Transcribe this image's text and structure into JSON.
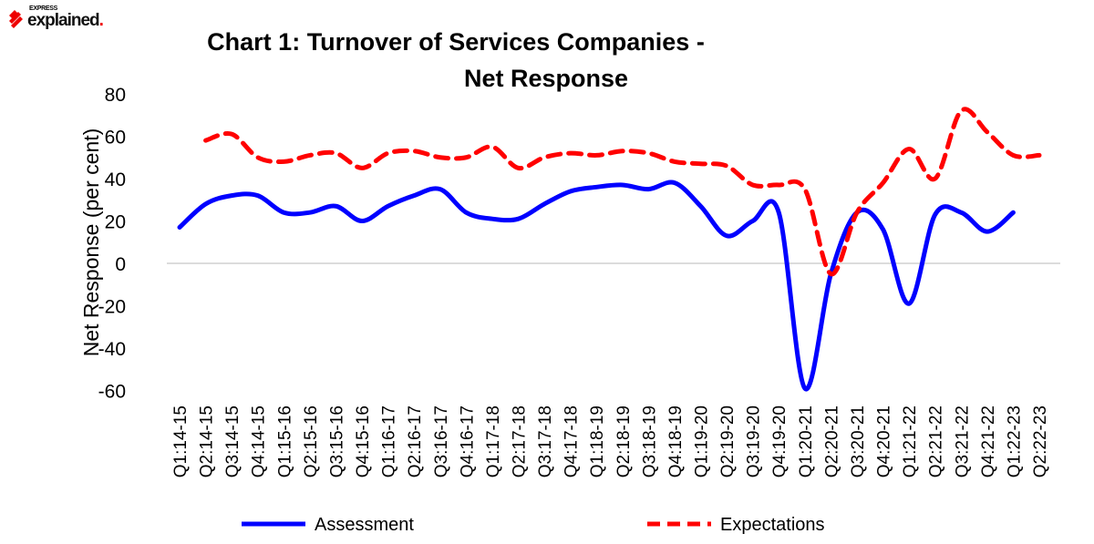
{
  "logo": {
    "top": "EXPRESS",
    "main": "explained",
    "dot": "."
  },
  "chart_data": {
    "type": "line",
    "title": [
      "Chart 1: Turnover of Services Companies -",
      "Net Response"
    ],
    "xlabel": "",
    "ylabel": "Net Response (per cent)",
    "ylim": [
      -60,
      80
    ],
    "yticks": [
      "80",
      "60",
      "40",
      "20",
      "0",
      "-20",
      "-40",
      "-60"
    ],
    "ytick_values": [
      80,
      60,
      40,
      20,
      0,
      -20,
      -40,
      -60
    ],
    "grid": "zero-line only",
    "legend": "bottom",
    "categories": [
      "Q1:14-15",
      "Q2:14-15",
      "Q3:14-15",
      "Q4:14-15",
      "Q1:15-16",
      "Q2:15-16",
      "Q3:15-16",
      "Q4:15-16",
      "Q1:16-17",
      "Q2:16-17",
      "Q3:16-17",
      "Q4:16-17",
      "Q1:17-18",
      "Q2:17-18",
      "Q3:17-18",
      "Q4:17-18",
      "Q1:18-19",
      "Q2:18-19",
      "Q3:18-19",
      "Q4:18-19",
      "Q1:19-20",
      "Q2:19-20",
      "Q3:19-20",
      "Q4:19-20",
      "Q1:20-21",
      "Q2:20-21",
      "Q3:20-21",
      "Q4:20-21",
      "Q1:21-22",
      "Q2:21-22",
      "Q3:21-22",
      "Q4:21-22",
      "Q1:22-23",
      "Q2:22-23"
    ],
    "series": [
      {
        "name": "Assessment",
        "color": "#0000ff",
        "dash": false,
        "values": [
          17,
          28,
          32,
          32,
          24,
          24,
          27,
          20,
          27,
          32,
          35,
          24,
          21,
          21,
          28,
          34,
          36,
          37,
          35,
          38,
          27,
          13,
          20,
          24,
          -59,
          -5,
          24,
          16,
          -19,
          23,
          24,
          15,
          24,
          null
        ]
      },
      {
        "name": "Expectations",
        "color": "#ff0000",
        "dash": true,
        "values": [
          null,
          58,
          61,
          50,
          48,
          51,
          52,
          45,
          52,
          53,
          50,
          50,
          55,
          45,
          50,
          52,
          51,
          53,
          52,
          48,
          47,
          46,
          37,
          37,
          35,
          -5,
          24,
          38,
          54,
          40,
          72,
          62,
          51,
          51
        ]
      }
    ]
  }
}
